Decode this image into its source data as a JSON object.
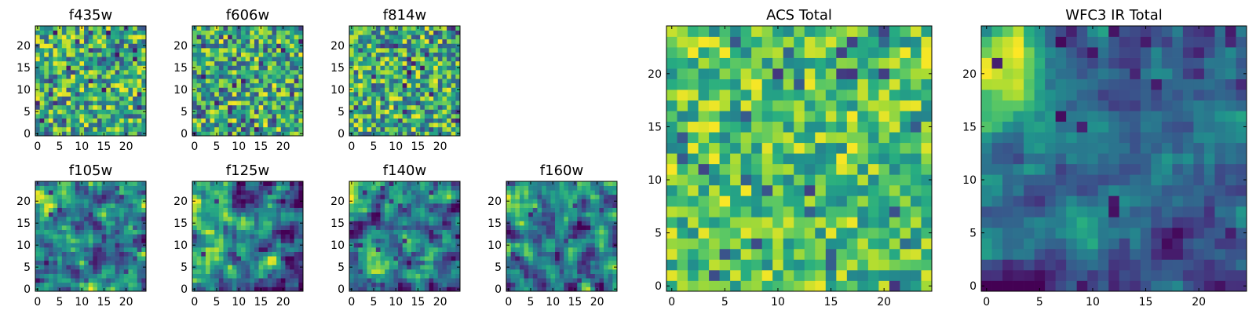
{
  "colormap": "viridis",
  "colormap_stops": [
    "#440154",
    "#472c7a",
    "#3b528b",
    "#2c728e",
    "#21908d",
    "#27ad81",
    "#5cc863",
    "#aadc32",
    "#fde725"
  ],
  "chart_data": [
    {
      "type": "heatmap",
      "title": "f435w",
      "grid_size": 25,
      "xticks": [
        "0",
        "5",
        "10",
        "15",
        "20"
      ],
      "yticks": [
        "0",
        "5",
        "10",
        "15",
        "20"
      ],
      "xlim": [
        0,
        24
      ],
      "ylim": [
        0,
        24
      ],
      "pattern": "noise",
      "seed": 11
    },
    {
      "type": "heatmap",
      "title": "f606w",
      "grid_size": 25,
      "xticks": [
        "0",
        "5",
        "10",
        "15",
        "20"
      ],
      "yticks": [
        "0",
        "5",
        "10",
        "15",
        "20"
      ],
      "xlim": [
        0,
        24
      ],
      "ylim": [
        0,
        24
      ],
      "pattern": "noise",
      "seed": 23
    },
    {
      "type": "heatmap",
      "title": "f814w",
      "grid_size": 25,
      "xticks": [
        "0",
        "5",
        "10",
        "15",
        "20"
      ],
      "yticks": [
        "0",
        "5",
        "10",
        "15",
        "20"
      ],
      "xlim": [
        0,
        24
      ],
      "ylim": [
        0,
        24
      ],
      "pattern": "noise",
      "seed": 37
    },
    {
      "type": "heatmap",
      "title": "f105w",
      "grid_size": 25,
      "xticks": [
        "0",
        "5",
        "10",
        "15",
        "20"
      ],
      "yticks": [
        "0",
        "5",
        "10",
        "15",
        "20"
      ],
      "xlim": [
        0,
        24
      ],
      "ylim": [
        0,
        24
      ],
      "pattern": "smooth",
      "seed": 41
    },
    {
      "type": "heatmap",
      "title": "f125w",
      "grid_size": 25,
      "xticks": [
        "0",
        "5",
        "10",
        "15",
        "20"
      ],
      "yticks": [
        "0",
        "5",
        "10",
        "15",
        "20"
      ],
      "xlim": [
        0,
        24
      ],
      "ylim": [
        0,
        24
      ],
      "pattern": "smooth",
      "seed": 53
    },
    {
      "type": "heatmap",
      "title": "f140w",
      "grid_size": 25,
      "xticks": [
        "0",
        "5",
        "10",
        "15",
        "20"
      ],
      "yticks": [
        "0",
        "5",
        "10",
        "15",
        "20"
      ],
      "xlim": [
        0,
        24
      ],
      "ylim": [
        0,
        24
      ],
      "pattern": "smooth",
      "seed": 67
    },
    {
      "type": "heatmap",
      "title": "f160w",
      "grid_size": 25,
      "xticks": [
        "0",
        "5",
        "10",
        "15",
        "20"
      ],
      "yticks": [
        "0",
        "5",
        "10",
        "15",
        "20"
      ],
      "xlim": [
        0,
        24
      ],
      "ylim": [
        0,
        24
      ],
      "pattern": "smooth",
      "seed": 79
    },
    {
      "type": "heatmap",
      "title": "ACS Total",
      "grid_size": 25,
      "xticks": [
        "0",
        "5",
        "10",
        "15",
        "20"
      ],
      "yticks": [
        "0",
        "5",
        "10",
        "15",
        "20"
      ],
      "xlim": [
        0,
        24
      ],
      "ylim": [
        0,
        24
      ],
      "pattern": "bright",
      "seed": 83
    },
    {
      "type": "heatmap",
      "title": "WFC3 IR Total",
      "grid_size": 25,
      "xticks": [
        "0",
        "5",
        "10",
        "15",
        "20"
      ],
      "yticks": [
        "0",
        "5",
        "10",
        "15",
        "20"
      ],
      "xlim": [
        0,
        24
      ],
      "ylim": [
        0,
        24
      ],
      "pattern": "gradient",
      "seed": 97
    }
  ]
}
